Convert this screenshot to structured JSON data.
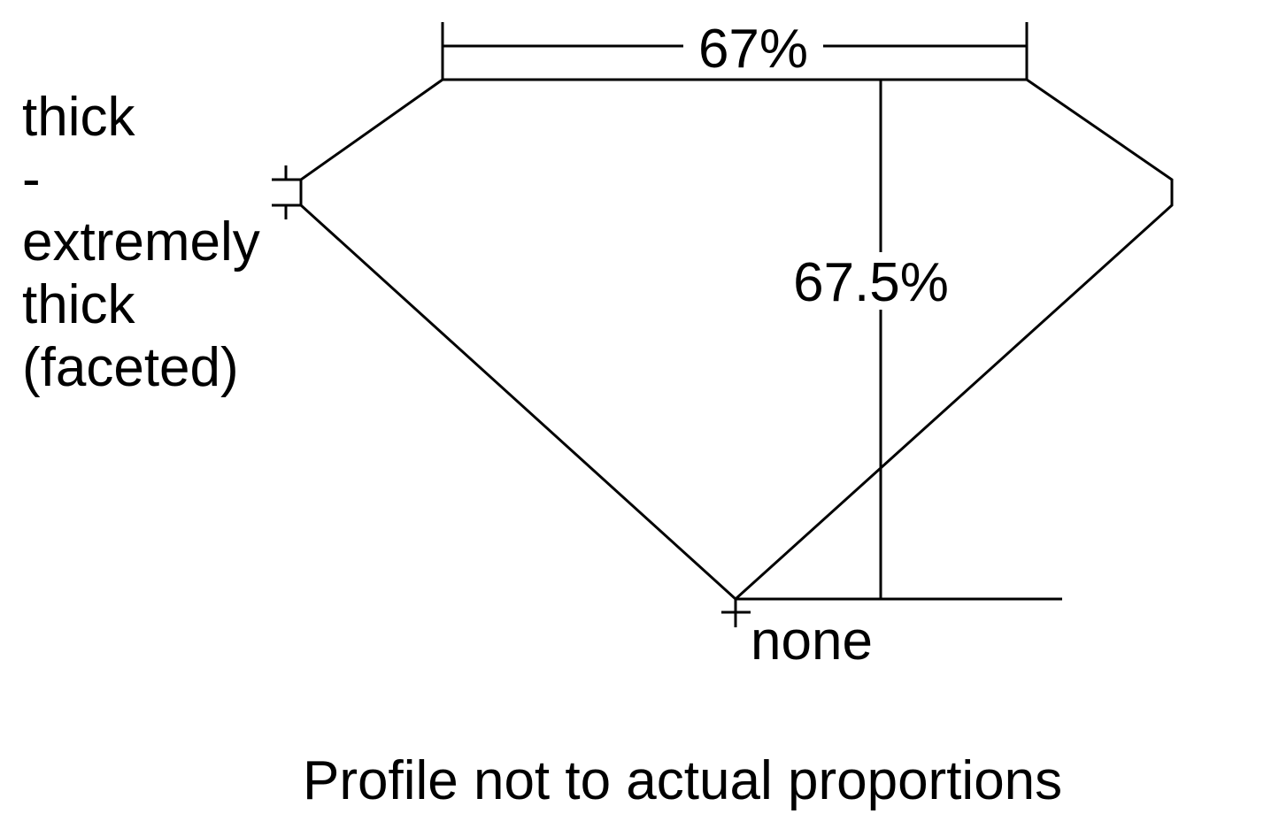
{
  "table_width_label": "67%",
  "depth_label": "67.5%",
  "girdle_label_lines": [
    "thick",
    "-",
    "extremely",
    "thick",
    "(faceted)"
  ],
  "culet_label": "none",
  "footnote": "Profile not to actual proportions",
  "colors": {
    "line": "#000000",
    "background": "#ffffff"
  }
}
